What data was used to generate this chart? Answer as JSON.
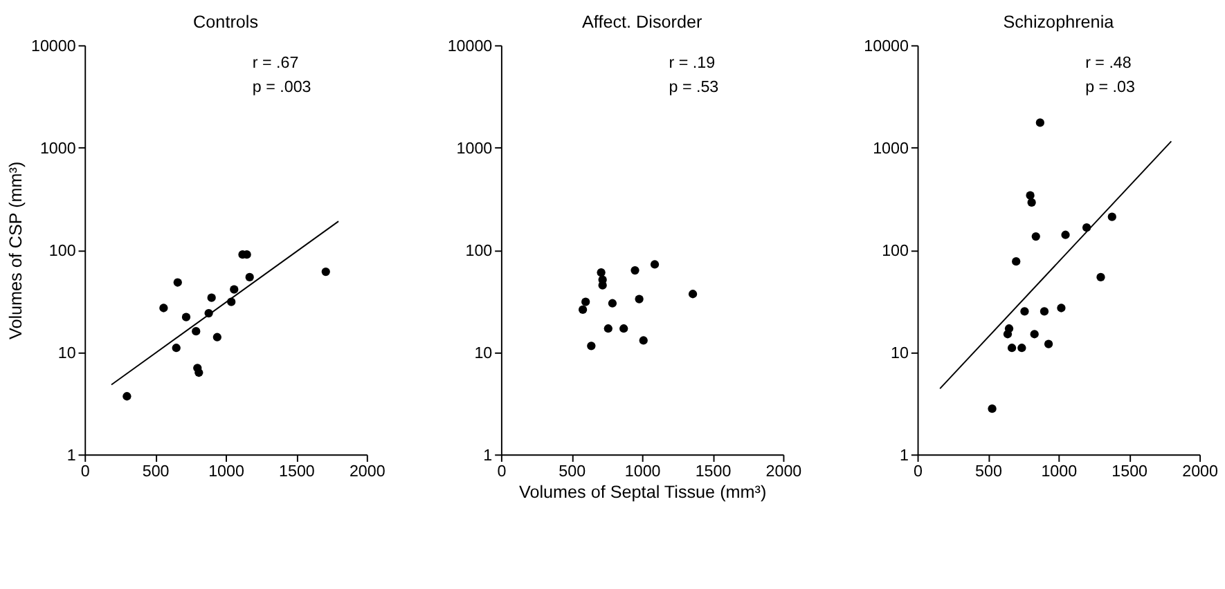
{
  "chart_data": [
    {
      "type": "scatter",
      "title": "Controls",
      "ylabel": "Volumes of CSP (mm³)",
      "xlim": [
        0,
        2000
      ],
      "xticks": [
        0,
        500,
        1000,
        1500,
        2000
      ],
      "ylim": [
        1,
        10000
      ],
      "yticks": [
        1,
        10,
        100,
        1000,
        10000
      ],
      "log": "y",
      "grid": false,
      "marker": "circle",
      "annotations": [
        "r = .67",
        "p = .003"
      ],
      "series": [
        {
          "color": "#000000",
          "x": [
            300,
            560,
            650,
            660,
            720,
            790,
            800,
            810,
            880,
            900,
            940,
            1040,
            1060,
            1120,
            1150,
            1170,
            1710
          ],
          "values": [
            3.7,
            27,
            11,
            48,
            22,
            16,
            7,
            6.3,
            24,
            34,
            14,
            31,
            41,
            90,
            90,
            54,
            61
          ]
        },
        {
          "type": "line",
          "marker": "none",
          "color": "#000000",
          "x": [
            190,
            1800
          ],
          "values": [
            4.8,
            190
          ]
        }
      ]
    },
    {
      "type": "scatter",
      "title": "Affect. Disorder",
      "xlabel": "Volumes of Septal Tissue (mm³)",
      "xlim": [
        0,
        2000
      ],
      "xticks": [
        0,
        500,
        1000,
        1500,
        2000
      ],
      "ylim": [
        1,
        10000
      ],
      "yticks": [
        1,
        10,
        100,
        1000,
        10000
      ],
      "log": "y",
      "grid": false,
      "marker": "circle",
      "annotations": [
        "r = .19",
        "p = .53"
      ],
      "series": [
        {
          "color": "#000000",
          "x": [
            580,
            600,
            640,
            710,
            720,
            720,
            760,
            790,
            870,
            950,
            980,
            1010,
            1090,
            1360
          ],
          "values": [
            26,
            31,
            11.5,
            60,
            51,
            45,
            17,
            30,
            17,
            63,
            33,
            13,
            72,
            37
          ]
        }
      ]
    },
    {
      "type": "scatter",
      "title": "Schizophrenia",
      "xlim": [
        0,
        2000
      ],
      "xticks": [
        0,
        500,
        1000,
        1500,
        2000
      ],
      "ylim": [
        1,
        10000
      ],
      "yticks": [
        1,
        10,
        100,
        1000,
        10000
      ],
      "log": "y",
      "grid": false,
      "marker": "circle",
      "annotations": [
        "r = .48",
        "p = .03"
      ],
      "series": [
        {
          "color": "#000000",
          "x": [
            530,
            640,
            650,
            670,
            700,
            740,
            760,
            800,
            810,
            830,
            840,
            870,
            900,
            930,
            1020,
            1050,
            1200,
            1300,
            1380
          ],
          "values": [
            2.8,
            15,
            17,
            11,
            77,
            11,
            25,
            340,
            290,
            15,
            135,
            1750,
            25,
            12,
            27,
            140,
            165,
            54,
            210
          ]
        },
        {
          "type": "line",
          "marker": "none",
          "color": "#000000",
          "x": [
            160,
            1800
          ],
          "values": [
            4.4,
            1150
          ]
        }
      ]
    }
  ]
}
